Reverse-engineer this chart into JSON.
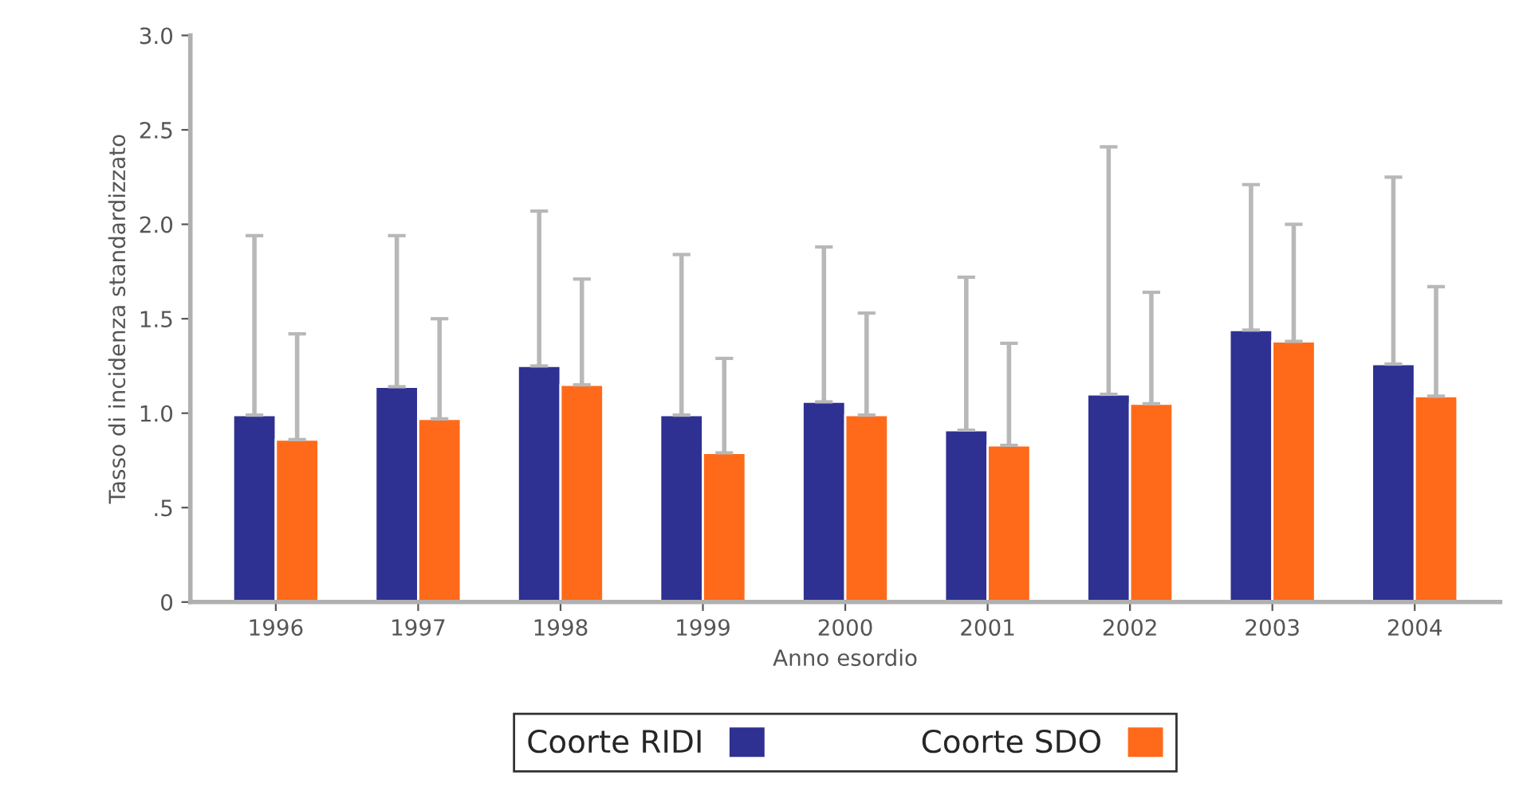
{
  "chart_data": {
    "type": "bar",
    "xlabel": "Anno esordio",
    "ylabel": "Tasso di incidenza standardizzato",
    "categories": [
      "1996",
      "1997",
      "1998",
      "1999",
      "2000",
      "2001",
      "2002",
      "2003",
      "2004"
    ],
    "series": [
      {
        "name": "Coorte RIDI",
        "color": "#2e3192",
        "values": [
          0.99,
          1.14,
          1.25,
          0.99,
          1.06,
          0.91,
          1.1,
          1.44,
          1.26
        ],
        "errors": [
          [
            0.99,
            1.94
          ],
          [
            1.14,
            1.94
          ],
          [
            1.25,
            2.07
          ],
          [
            0.99,
            1.84
          ],
          [
            1.06,
            1.88
          ],
          [
            0.91,
            1.72
          ],
          [
            1.1,
            2.41
          ],
          [
            1.44,
            2.21
          ],
          [
            1.26,
            2.25
          ]
        ]
      },
      {
        "name": "Coorte SDO",
        "color": "#ff6a1a",
        "values": [
          0.86,
          0.97,
          1.15,
          0.79,
          0.99,
          0.83,
          1.05,
          1.38,
          1.09
        ],
        "errors": [
          [
            0.86,
            1.42
          ],
          [
            0.97,
            1.5
          ],
          [
            1.15,
            1.71
          ],
          [
            0.79,
            1.29
          ],
          [
            0.99,
            1.53
          ],
          [
            0.83,
            1.37
          ],
          [
            1.05,
            1.64
          ],
          [
            1.38,
            2.0
          ],
          [
            1.09,
            1.67
          ]
        ]
      }
    ],
    "ylim": [
      0,
      3.0
    ],
    "yticks": [
      0,
      {
        "value": 0.5,
        "label": ".5"
      },
      {
        "value": 1.0,
        "label": "1.0"
      },
      {
        "value": 1.5,
        "label": "1.5"
      },
      {
        "value": 2.0,
        "label": "2.0"
      },
      {
        "value": 2.5,
        "label": "2.5"
      },
      {
        "value": 3.0,
        "label": "3.0"
      }
    ],
    "grid": false,
    "legend": "bottom"
  }
}
